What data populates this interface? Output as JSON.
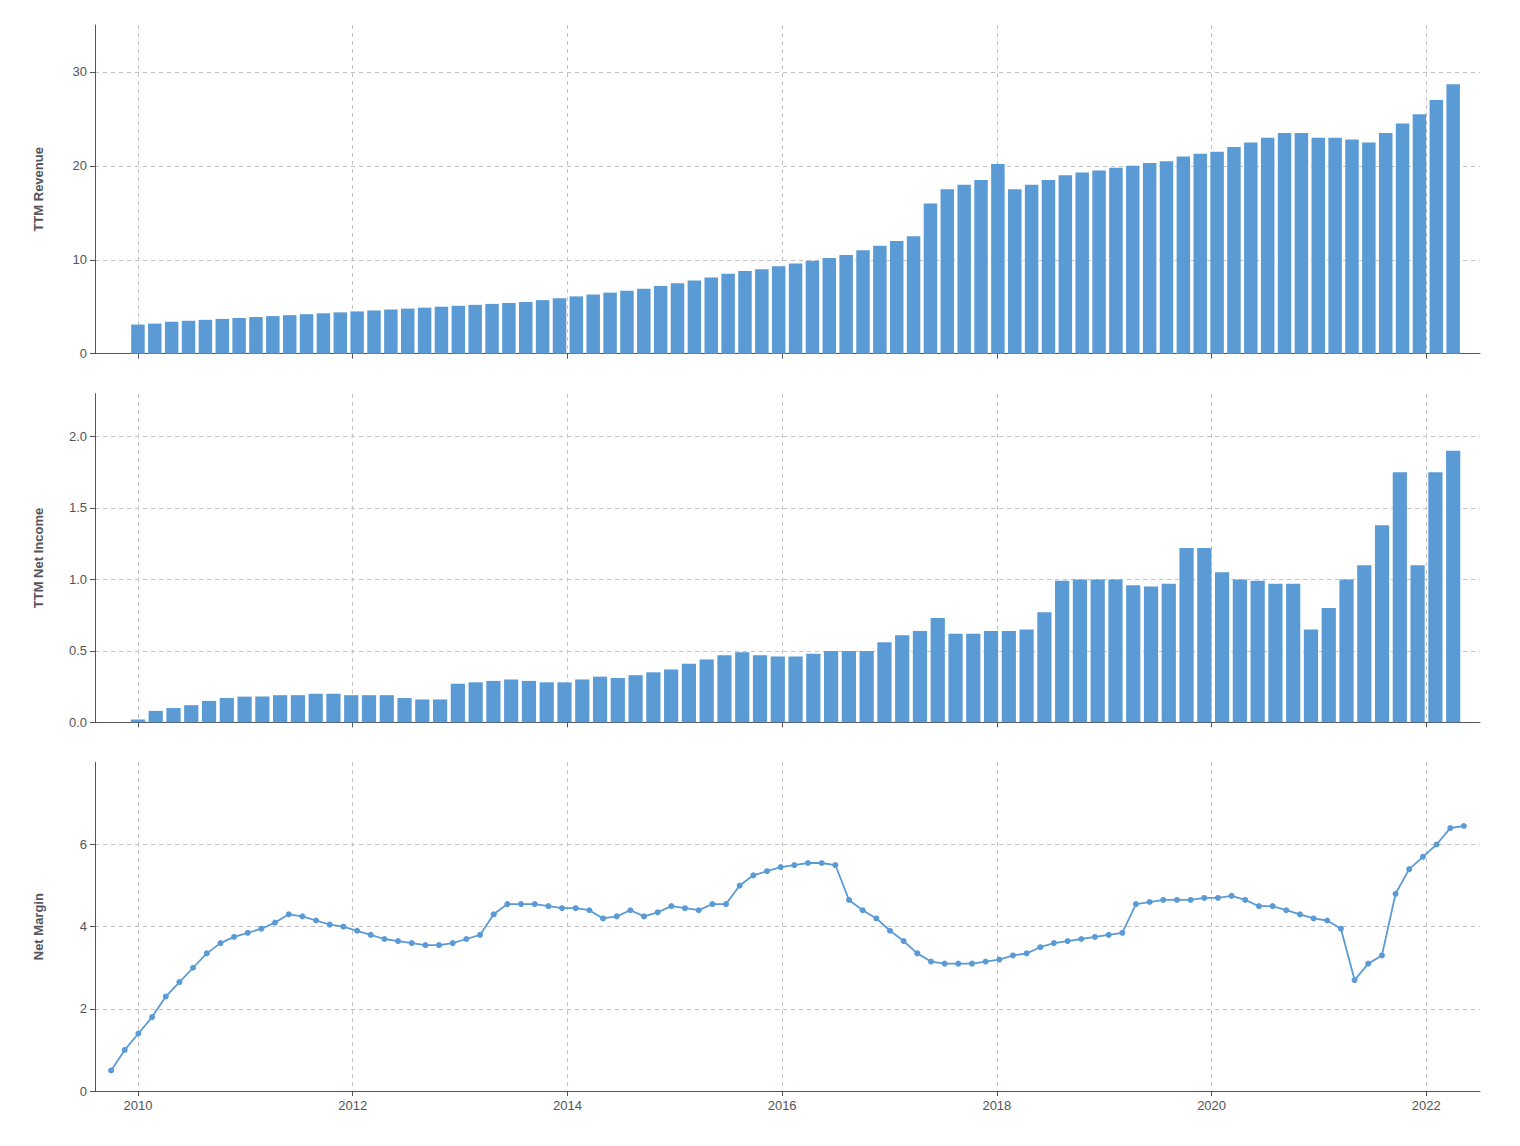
{
  "chart_data": [
    {
      "type": "bar",
      "ylabel": "TTM Revenue",
      "color": "#5b9bd5",
      "grid": true,
      "tick_labels": "y",
      "xlim": [
        2009.6,
        2022.5
      ],
      "xticks": [
        2010,
        2012,
        2014,
        2016,
        2018,
        2020,
        2022
      ],
      "ylim": [
        0,
        35
      ],
      "yticks": [
        0,
        10,
        20,
        30
      ],
      "x": [
        2010.0,
        2010.1571,
        2010.3141,
        2010.4712,
        2010.6282,
        2010.7853,
        2010.9423,
        2011.0994,
        2011.2564,
        2011.4135,
        2011.5705,
        2011.7276,
        2011.8846,
        2012.0417,
        2012.1987,
        2012.3558,
        2012.5128,
        2012.6699,
        2012.8269,
        2012.984,
        2013.141,
        2013.2981,
        2013.4551,
        2013.6122,
        2013.7692,
        2013.9263,
        2014.0833,
        2014.2404,
        2014.3974,
        2014.5545,
        2014.7115,
        2014.8686,
        2015.0256,
        2015.1827,
        2015.3397,
        2015.4968,
        2015.6538,
        2015.8109,
        2015.9679,
        2016.125,
        2016.2821,
        2016.4391,
        2016.5962,
        2016.7532,
        2016.9103,
        2017.0673,
        2017.2244,
        2017.3814,
        2017.5385,
        2017.6955,
        2017.8526,
        2018.0096,
        2018.1667,
        2018.3237,
        2018.4808,
        2018.6378,
        2018.7949,
        2018.9519,
        2019.109,
        2019.266,
        2019.4231,
        2019.5801,
        2019.7372,
        2019.8942,
        2020.0513,
        2020.2083,
        2020.3654,
        2020.5224,
        2020.6795,
        2020.8365,
        2020.9936,
        2021.1506,
        2021.3077,
        2021.4647,
        2021.6218,
        2021.7788,
        2021.9359,
        2022.0929,
        2022.25
      ],
      "values": [
        3.1,
        3.2,
        3.4,
        3.5,
        3.6,
        3.7,
        3.8,
        3.9,
        4.0,
        4.1,
        4.2,
        4.3,
        4.4,
        4.5,
        4.6,
        4.7,
        4.8,
        4.9,
        5.0,
        5.1,
        5.2,
        5.3,
        5.4,
        5.5,
        5.7,
        5.9,
        6.1,
        6.3,
        6.5,
        6.7,
        6.9,
        7.2,
        7.5,
        7.8,
        8.1,
        8.5,
        8.8,
        9.0,
        9.3,
        9.6,
        9.9,
        10.2,
        10.5,
        11.0,
        11.5,
        12.0,
        12.5,
        16.0,
        17.5,
        18.0,
        18.5,
        20.2,
        17.5,
        18.0,
        18.5,
        19.0,
        19.3,
        19.5,
        19.8,
        20.0,
        20.3,
        20.5,
        21.0,
        21.3,
        21.5,
        22.0,
        22.5,
        23.0,
        23.5,
        23.5,
        23.0,
        23.0,
        22.8,
        22.5,
        23.5,
        24.5,
        25.5,
        27.0,
        28.7
      ]
    },
    {
      "type": "bar",
      "ylabel": "TTM Net Income",
      "color": "#5b9bd5",
      "grid": true,
      "tick_labels": "y",
      "xlim": [
        2009.6,
        2022.5
      ],
      "xticks": [
        2010,
        2012,
        2014,
        2016,
        2018,
        2020,
        2022
      ],
      "ylim": [
        0,
        2.3
      ],
      "yticks": [
        {
          "value": 0,
          "label": "0.0"
        },
        0.5,
        {
          "value": 1,
          "label": "1.0"
        },
        1.5,
        {
          "value": 2,
          "label": "2.0"
        }
      ],
      "x": [
        2010.0,
        2010.1655,
        2010.3311,
        2010.4966,
        2010.6622,
        2010.8277,
        2010.9932,
        2011.1588,
        2011.3243,
        2011.4899,
        2011.6554,
        2011.8209,
        2011.9865,
        2012.152,
        2012.3176,
        2012.4831,
        2012.6486,
        2012.8142,
        2012.9797,
        2013.1453,
        2013.3108,
        2013.4764,
        2013.6419,
        2013.8074,
        2013.973,
        2014.1385,
        2014.3041,
        2014.4696,
        2014.6351,
        2014.8007,
        2014.9662,
        2015.1318,
        2015.2973,
        2015.4628,
        2015.6284,
        2015.7939,
        2015.9595,
        2016.125,
        2016.2905,
        2016.4561,
        2016.6216,
        2016.7872,
        2016.9527,
        2017.1182,
        2017.2838,
        2017.4493,
        2017.6149,
        2017.7804,
        2017.9459,
        2018.1115,
        2018.277,
        2018.4426,
        2018.6081,
        2018.7736,
        2018.9392,
        2019.1047,
        2019.2703,
        2019.4358,
        2019.6014,
        2019.7669,
        2019.9324,
        2020.098,
        2020.2635,
        2020.4291,
        2020.5946,
        2020.7601,
        2020.9257,
        2021.0912,
        2021.2568,
        2021.4223,
        2021.5878,
        2021.7534,
        2021.9189,
        2022.0845,
        2022.25
      ],
      "values": [
        0.02,
        0.08,
        0.1,
        0.12,
        0.15,
        0.17,
        0.18,
        0.18,
        0.19,
        0.19,
        0.2,
        0.2,
        0.19,
        0.19,
        0.19,
        0.17,
        0.16,
        0.16,
        0.27,
        0.28,
        0.29,
        0.3,
        0.29,
        0.28,
        0.28,
        0.3,
        0.32,
        0.31,
        0.33,
        0.35,
        0.37,
        0.41,
        0.44,
        0.47,
        0.49,
        0.47,
        0.46,
        0.46,
        0.48,
        0.5,
        0.5,
        0.5,
        0.56,
        0.61,
        0.64,
        0.73,
        0.62,
        0.62,
        0.64,
        0.64,
        0.65,
        0.77,
        0.99,
        1.0,
        1.0,
        1.0,
        0.96,
        0.95,
        0.97,
        1.22,
        1.22,
        1.05,
        1.0,
        0.99,
        0.97,
        0.97,
        0.65,
        0.8,
        1.0,
        1.1,
        1.38,
        1.75,
        1.1,
        1.75,
        1.9
      ]
    },
    {
      "type": "line",
      "ylabel": "Net Margin",
      "color": "#5b9bd5",
      "marker": "circle",
      "grid": true,
      "xlim": [
        2009.6,
        2022.5
      ],
      "xticks": [
        2010,
        2012,
        2014,
        2016,
        2018,
        2020,
        2022
      ],
      "ylim": [
        0,
        8
      ],
      "yticks": [
        0,
        2,
        4,
        6
      ],
      "x": [
        2009.75,
        2009.8773,
        2010.0045,
        2010.1318,
        2010.2591,
        2010.3864,
        2010.5136,
        2010.6409,
        2010.7682,
        2010.8955,
        2011.0227,
        2011.15,
        2011.2773,
        2011.4045,
        2011.5318,
        2011.6591,
        2011.7864,
        2011.9136,
        2012.0409,
        2012.1682,
        2012.2955,
        2012.4227,
        2012.55,
        2012.6773,
        2012.8045,
        2012.9318,
        2013.0591,
        2013.1864,
        2013.3136,
        2013.4409,
        2013.5682,
        2013.6955,
        2013.8227,
        2013.95,
        2014.0773,
        2014.2045,
        2014.3318,
        2014.4591,
        2014.5864,
        2014.7136,
        2014.8409,
        2014.9682,
        2015.0955,
        2015.2227,
        2015.35,
        2015.4773,
        2015.6045,
        2015.7318,
        2015.8591,
        2015.9864,
        2016.1136,
        2016.2409,
        2016.3682,
        2016.4955,
        2016.6227,
        2016.75,
        2016.8773,
        2017.0045,
        2017.1318,
        2017.2591,
        2017.3864,
        2017.5136,
        2017.6409,
        2017.7682,
        2017.8955,
        2018.0227,
        2018.15,
        2018.2773,
        2018.4045,
        2018.5318,
        2018.6591,
        2018.7864,
        2018.9136,
        2019.0409,
        2019.1682,
        2019.2955,
        2019.4227,
        2019.55,
        2019.6773,
        2019.8045,
        2019.9318,
        2020.0591,
        2020.1864,
        2020.3136,
        2020.4409,
        2020.5682,
        2020.6955,
        2020.8227,
        2020.95,
        2021.0773,
        2021.2045,
        2021.3318,
        2021.4591,
        2021.5864,
        2021.7136,
        2021.8409,
        2021.9682,
        2022.0955,
        2022.2227,
        2022.35
      ],
      "values": [
        0.5,
        1.0,
        1.4,
        1.8,
        2.3,
        2.65,
        3.0,
        3.35,
        3.6,
        3.75,
        3.85,
        3.95,
        4.1,
        4.3,
        4.25,
        4.15,
        4.05,
        4.0,
        3.9,
        3.8,
        3.7,
        3.65,
        3.6,
        3.55,
        3.55,
        3.6,
        3.7,
        3.8,
        4.3,
        4.55,
        4.55,
        4.55,
        4.5,
        4.45,
        4.45,
        4.4,
        4.2,
        4.25,
        4.4,
        4.25,
        4.35,
        4.5,
        4.45,
        4.4,
        4.55,
        4.55,
        5.0,
        5.25,
        5.35,
        5.45,
        5.5,
        5.55,
        5.55,
        5.5,
        4.65,
        4.4,
        4.2,
        3.9,
        3.65,
        3.35,
        3.15,
        3.1,
        3.1,
        3.1,
        3.15,
        3.2,
        3.3,
        3.35,
        3.5,
        3.6,
        3.65,
        3.7,
        3.75,
        3.8,
        3.85,
        4.55,
        4.6,
        4.65,
        4.65,
        4.65,
        4.7,
        4.7,
        4.75,
        4.65,
        4.5,
        4.5,
        4.4,
        4.3,
        4.2,
        4.15,
        3.95,
        2.7,
        3.1,
        3.3,
        4.8,
        5.4,
        5.7,
        6.0,
        6.4,
        6.45
      ]
    }
  ]
}
